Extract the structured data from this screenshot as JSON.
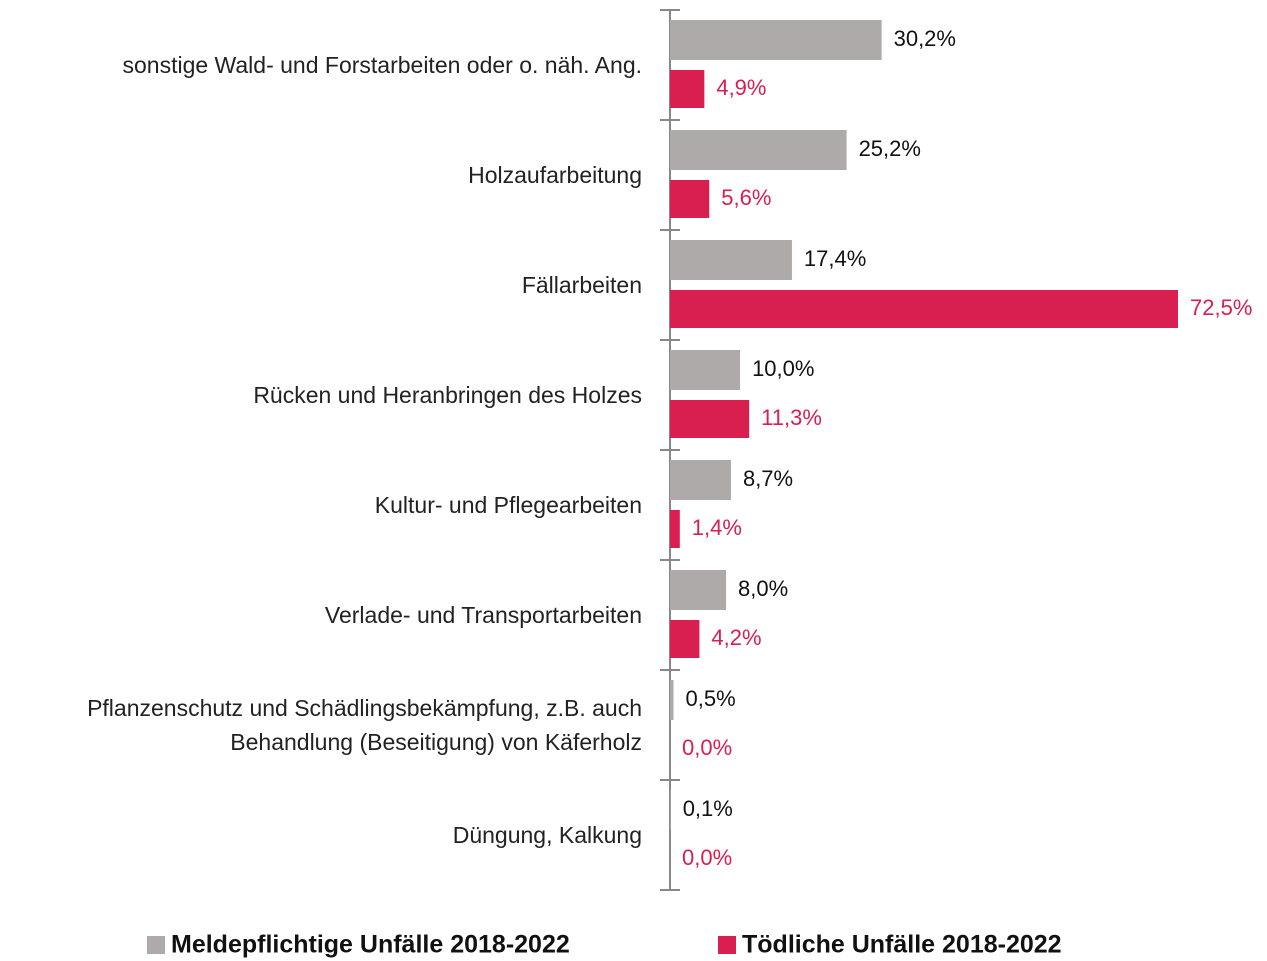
{
  "chart_data": {
    "type": "bar",
    "orientation": "horizontal",
    "categories": [
      "sonstige Wald- und Forstarbeiten oder o. näh. Ang.",
      "Holzaufarbeitung",
      "Fällarbeiten",
      "Rücken und Heranbringen des Holzes",
      "Kultur- und Pflegearbeiten",
      "Verlade- und Transportarbeiten",
      "Pflanzenschutz und Schädlingsbekämpfung, z.B. auch\nBehandlung (Beseitigung) von Käferholz",
      "Düngung, Kalkung"
    ],
    "series": [
      {
        "name": "Meldepflichtige Unfälle 2018-2022",
        "color": "#aeaaaa",
        "label_color": "#111111",
        "values": [
          30.2,
          25.2,
          17.4,
          10.0,
          8.7,
          8.0,
          0.5,
          0.1
        ],
        "value_labels": [
          "30,2%",
          "25,2%",
          "17,4%",
          "10,0%",
          "8,7%",
          "8,0%",
          "0,5%",
          "0,1%"
        ]
      },
      {
        "name": "Tödliche Unfälle 2018-2022",
        "color": "#d81f4f",
        "label_color": "#d81f4f",
        "values": [
          4.9,
          5.6,
          72.5,
          11.3,
          1.4,
          4.2,
          0.0,
          0.0
        ],
        "value_labels": [
          "4,9%",
          "5,6%",
          "72,5%",
          "11,3%",
          "1,4%",
          "4,2%",
          "0,0%",
          "0,0%"
        ]
      }
    ],
    "legend": "bottom"
  }
}
